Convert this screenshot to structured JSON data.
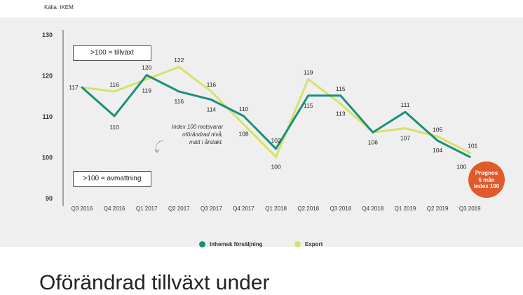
{
  "source": "Källa: IKEM",
  "headline": "Oförändrad tillväxt under",
  "annotations": {
    "growth": ">100 = tillväxt",
    "slowdown": ">100 = avmattning",
    "note_lines": [
      "Index 100 motsvarar",
      "oförändrad nivå,",
      "mätt i årstakt."
    ],
    "badge_lines": [
      "Prognos",
      "6 mån",
      "index 100"
    ]
  },
  "colors": {
    "domestic": "#1a8f7b",
    "export": "#d9e06a",
    "badge": "#e05a2b",
    "background": "#efeff0"
  },
  "chart_data": {
    "type": "line",
    "categories": [
      "Q3 2016",
      "Q4 2016",
      "Q1 2017",
      "Q2 2017",
      "Q3 2017",
      "Q4 2017",
      "Q1 2018",
      "Q2 2018",
      "Q3 2018",
      "Q4 2018",
      "Q1 2019",
      "Q2 2019",
      "Q3 2019"
    ],
    "ylim": [
      90,
      130
    ],
    "yticks": [
      90,
      100,
      110,
      120,
      130
    ],
    "grid": false,
    "legend_position": "bottom",
    "series": [
      {
        "name": "Inhemsk försäljning",
        "values": [
          117,
          110,
          120,
          116,
          114,
          110,
          102,
          115,
          115,
          106,
          111,
          104,
          100
        ],
        "labels": [
          "117",
          "110",
          "120",
          "116",
          "114",
          "110",
          "102",
          "115",
          "115",
          "106",
          "111",
          "104",
          "100"
        ]
      },
      {
        "name": "Export",
        "values": [
          117,
          116,
          119,
          122,
          116,
          108,
          100,
          119,
          113,
          106,
          107,
          105,
          101
        ],
        "labels": [
          "",
          "116",
          "119",
          "122",
          "116",
          "108",
          "100",
          "119",
          "113",
          "",
          "107",
          "105",
          "101"
        ]
      }
    ]
  }
}
